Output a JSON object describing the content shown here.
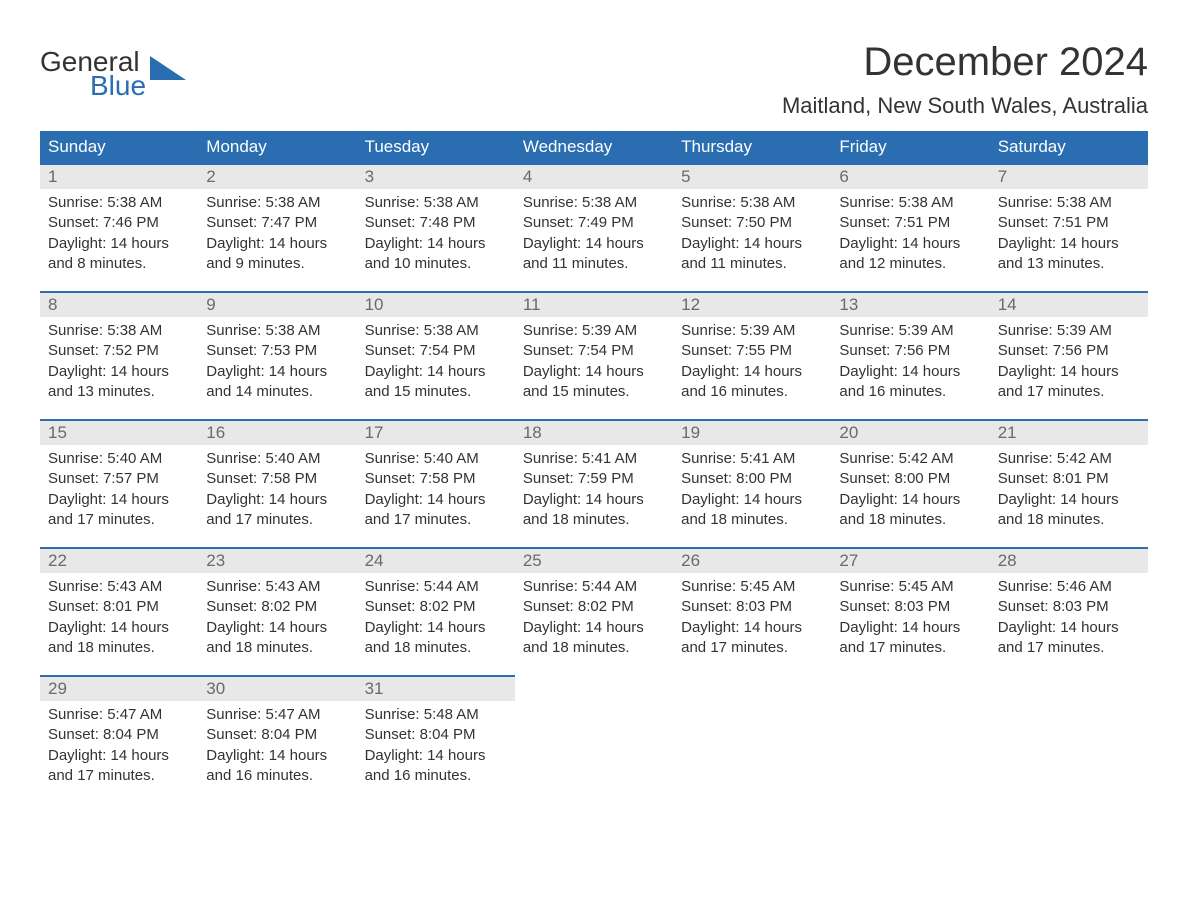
{
  "logo": {
    "line1": "General",
    "line2": "Blue"
  },
  "title": "December 2024",
  "location": "Maitland, New South Wales, Australia",
  "colors": {
    "header_bg": "#2a6db0",
    "header_text": "#ffffff",
    "daynum_bg": "#e8e8e8",
    "daynum_text": "#6a6a6a",
    "body_text": "#333333",
    "row_border": "#2a6db0",
    "background": "#ffffff"
  },
  "weekdays": [
    "Sunday",
    "Monday",
    "Tuesday",
    "Wednesday",
    "Thursday",
    "Friday",
    "Saturday"
  ],
  "days": [
    {
      "n": "1",
      "sunrise": "Sunrise: 5:38 AM",
      "sunset": "Sunset: 7:46 PM",
      "day1": "Daylight: 14 hours",
      "day2": "and 8 minutes."
    },
    {
      "n": "2",
      "sunrise": "Sunrise: 5:38 AM",
      "sunset": "Sunset: 7:47 PM",
      "day1": "Daylight: 14 hours",
      "day2": "and 9 minutes."
    },
    {
      "n": "3",
      "sunrise": "Sunrise: 5:38 AM",
      "sunset": "Sunset: 7:48 PM",
      "day1": "Daylight: 14 hours",
      "day2": "and 10 minutes."
    },
    {
      "n": "4",
      "sunrise": "Sunrise: 5:38 AM",
      "sunset": "Sunset: 7:49 PM",
      "day1": "Daylight: 14 hours",
      "day2": "and 11 minutes."
    },
    {
      "n": "5",
      "sunrise": "Sunrise: 5:38 AM",
      "sunset": "Sunset: 7:50 PM",
      "day1": "Daylight: 14 hours",
      "day2": "and 11 minutes."
    },
    {
      "n": "6",
      "sunrise": "Sunrise: 5:38 AM",
      "sunset": "Sunset: 7:51 PM",
      "day1": "Daylight: 14 hours",
      "day2": "and 12 minutes."
    },
    {
      "n": "7",
      "sunrise": "Sunrise: 5:38 AM",
      "sunset": "Sunset: 7:51 PM",
      "day1": "Daylight: 14 hours",
      "day2": "and 13 minutes."
    },
    {
      "n": "8",
      "sunrise": "Sunrise: 5:38 AM",
      "sunset": "Sunset: 7:52 PM",
      "day1": "Daylight: 14 hours",
      "day2": "and 13 minutes."
    },
    {
      "n": "9",
      "sunrise": "Sunrise: 5:38 AM",
      "sunset": "Sunset: 7:53 PM",
      "day1": "Daylight: 14 hours",
      "day2": "and 14 minutes."
    },
    {
      "n": "10",
      "sunrise": "Sunrise: 5:38 AM",
      "sunset": "Sunset: 7:54 PM",
      "day1": "Daylight: 14 hours",
      "day2": "and 15 minutes."
    },
    {
      "n": "11",
      "sunrise": "Sunrise: 5:39 AM",
      "sunset": "Sunset: 7:54 PM",
      "day1": "Daylight: 14 hours",
      "day2": "and 15 minutes."
    },
    {
      "n": "12",
      "sunrise": "Sunrise: 5:39 AM",
      "sunset": "Sunset: 7:55 PM",
      "day1": "Daylight: 14 hours",
      "day2": "and 16 minutes."
    },
    {
      "n": "13",
      "sunrise": "Sunrise: 5:39 AM",
      "sunset": "Sunset: 7:56 PM",
      "day1": "Daylight: 14 hours",
      "day2": "and 16 minutes."
    },
    {
      "n": "14",
      "sunrise": "Sunrise: 5:39 AM",
      "sunset": "Sunset: 7:56 PM",
      "day1": "Daylight: 14 hours",
      "day2": "and 17 minutes."
    },
    {
      "n": "15",
      "sunrise": "Sunrise: 5:40 AM",
      "sunset": "Sunset: 7:57 PM",
      "day1": "Daylight: 14 hours",
      "day2": "and 17 minutes."
    },
    {
      "n": "16",
      "sunrise": "Sunrise: 5:40 AM",
      "sunset": "Sunset: 7:58 PM",
      "day1": "Daylight: 14 hours",
      "day2": "and 17 minutes."
    },
    {
      "n": "17",
      "sunrise": "Sunrise: 5:40 AM",
      "sunset": "Sunset: 7:58 PM",
      "day1": "Daylight: 14 hours",
      "day2": "and 17 minutes."
    },
    {
      "n": "18",
      "sunrise": "Sunrise: 5:41 AM",
      "sunset": "Sunset: 7:59 PM",
      "day1": "Daylight: 14 hours",
      "day2": "and 18 minutes."
    },
    {
      "n": "19",
      "sunrise": "Sunrise: 5:41 AM",
      "sunset": "Sunset: 8:00 PM",
      "day1": "Daylight: 14 hours",
      "day2": "and 18 minutes."
    },
    {
      "n": "20",
      "sunrise": "Sunrise: 5:42 AM",
      "sunset": "Sunset: 8:00 PM",
      "day1": "Daylight: 14 hours",
      "day2": "and 18 minutes."
    },
    {
      "n": "21",
      "sunrise": "Sunrise: 5:42 AM",
      "sunset": "Sunset: 8:01 PM",
      "day1": "Daylight: 14 hours",
      "day2": "and 18 minutes."
    },
    {
      "n": "22",
      "sunrise": "Sunrise: 5:43 AM",
      "sunset": "Sunset: 8:01 PM",
      "day1": "Daylight: 14 hours",
      "day2": "and 18 minutes."
    },
    {
      "n": "23",
      "sunrise": "Sunrise: 5:43 AM",
      "sunset": "Sunset: 8:02 PM",
      "day1": "Daylight: 14 hours",
      "day2": "and 18 minutes."
    },
    {
      "n": "24",
      "sunrise": "Sunrise: 5:44 AM",
      "sunset": "Sunset: 8:02 PM",
      "day1": "Daylight: 14 hours",
      "day2": "and 18 minutes."
    },
    {
      "n": "25",
      "sunrise": "Sunrise: 5:44 AM",
      "sunset": "Sunset: 8:02 PM",
      "day1": "Daylight: 14 hours",
      "day2": "and 18 minutes."
    },
    {
      "n": "26",
      "sunrise": "Sunrise: 5:45 AM",
      "sunset": "Sunset: 8:03 PM",
      "day1": "Daylight: 14 hours",
      "day2": "and 17 minutes."
    },
    {
      "n": "27",
      "sunrise": "Sunrise: 5:45 AM",
      "sunset": "Sunset: 8:03 PM",
      "day1": "Daylight: 14 hours",
      "day2": "and 17 minutes."
    },
    {
      "n": "28",
      "sunrise": "Sunrise: 5:46 AM",
      "sunset": "Sunset: 8:03 PM",
      "day1": "Daylight: 14 hours",
      "day2": "and 17 minutes."
    },
    {
      "n": "29",
      "sunrise": "Sunrise: 5:47 AM",
      "sunset": "Sunset: 8:04 PM",
      "day1": "Daylight: 14 hours",
      "day2": "and 17 minutes."
    },
    {
      "n": "30",
      "sunrise": "Sunrise: 5:47 AM",
      "sunset": "Sunset: 8:04 PM",
      "day1": "Daylight: 14 hours",
      "day2": "and 16 minutes."
    },
    {
      "n": "31",
      "sunrise": "Sunrise: 5:48 AM",
      "sunset": "Sunset: 8:04 PM",
      "day1": "Daylight: 14 hours",
      "day2": "and 16 minutes."
    }
  ]
}
